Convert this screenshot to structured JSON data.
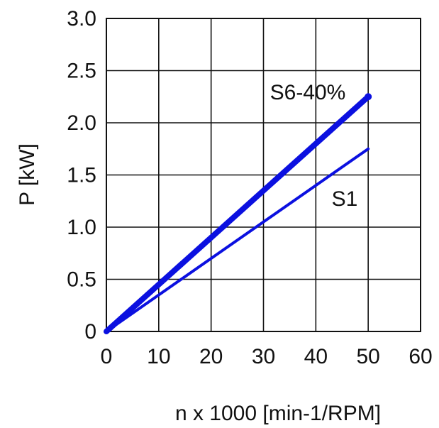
{
  "chart_data": {
    "type": "line",
    "xlabel": "n x 1000 [min-1/RPM]",
    "ylabel": "P [kW]",
    "xlim": [
      0,
      60
    ],
    "ylim": [
      0,
      3.0
    ],
    "x_ticks": [
      "0",
      "10",
      "20",
      "30",
      "40",
      "50",
      "60"
    ],
    "y_ticks": [
      "0",
      "0.5",
      "1.0",
      "1.5",
      "2.0",
      "2.5",
      "3.0"
    ],
    "grid": true,
    "series": [
      {
        "name": "S6-40%",
        "color": "#0b10e0",
        "style": "thick",
        "x": [
          0,
          50
        ],
        "y": [
          0,
          2.25
        ]
      },
      {
        "name": "S1",
        "color": "#0b10e0",
        "style": "thin",
        "x": [
          0,
          50
        ],
        "y": [
          0,
          1.75
        ]
      }
    ]
  }
}
